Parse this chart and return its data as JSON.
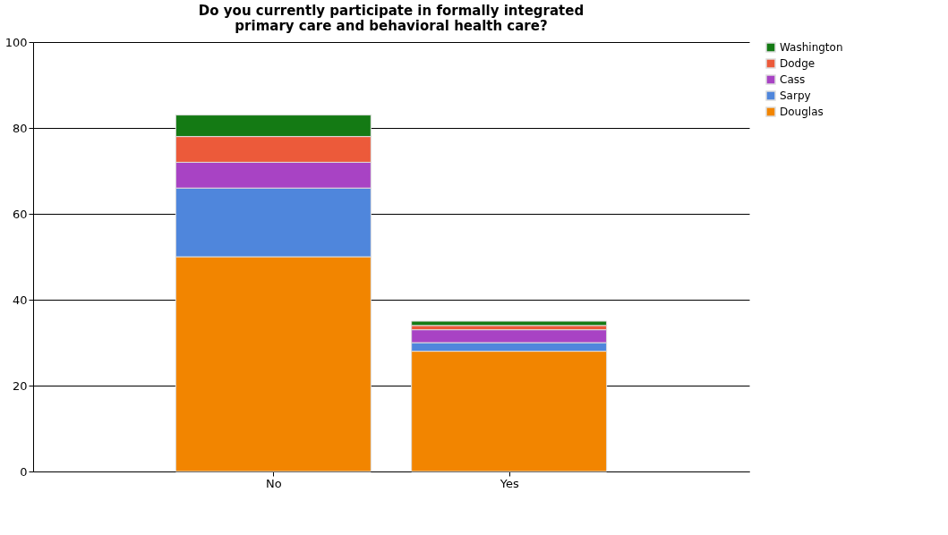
{
  "chart_data": {
    "type": "bar",
    "title": "Do you currently participate in formally integrated primary care and behavioral health care?",
    "categories": [
      "No",
      "Yes"
    ],
    "stacked": true,
    "series": [
      {
        "name": "Douglas",
        "color": "#f28500",
        "values": [
          50,
          28
        ]
      },
      {
        "name": "Sarpy",
        "color": "#4f86dc",
        "values": [
          16,
          2
        ]
      },
      {
        "name": "Cass",
        "color": "#a843c4",
        "values": [
          6,
          3
        ]
      },
      {
        "name": "Dodge",
        "color": "#ec5a3a",
        "values": [
          6,
          1
        ]
      },
      {
        "name": "Washington",
        "color": "#147a14",
        "values": [
          5,
          1
        ]
      }
    ],
    "ylim": [
      0,
      100
    ],
    "yticks": [
      0,
      20,
      40,
      60,
      80,
      100
    ],
    "grid": "y",
    "legend": "right"
  }
}
